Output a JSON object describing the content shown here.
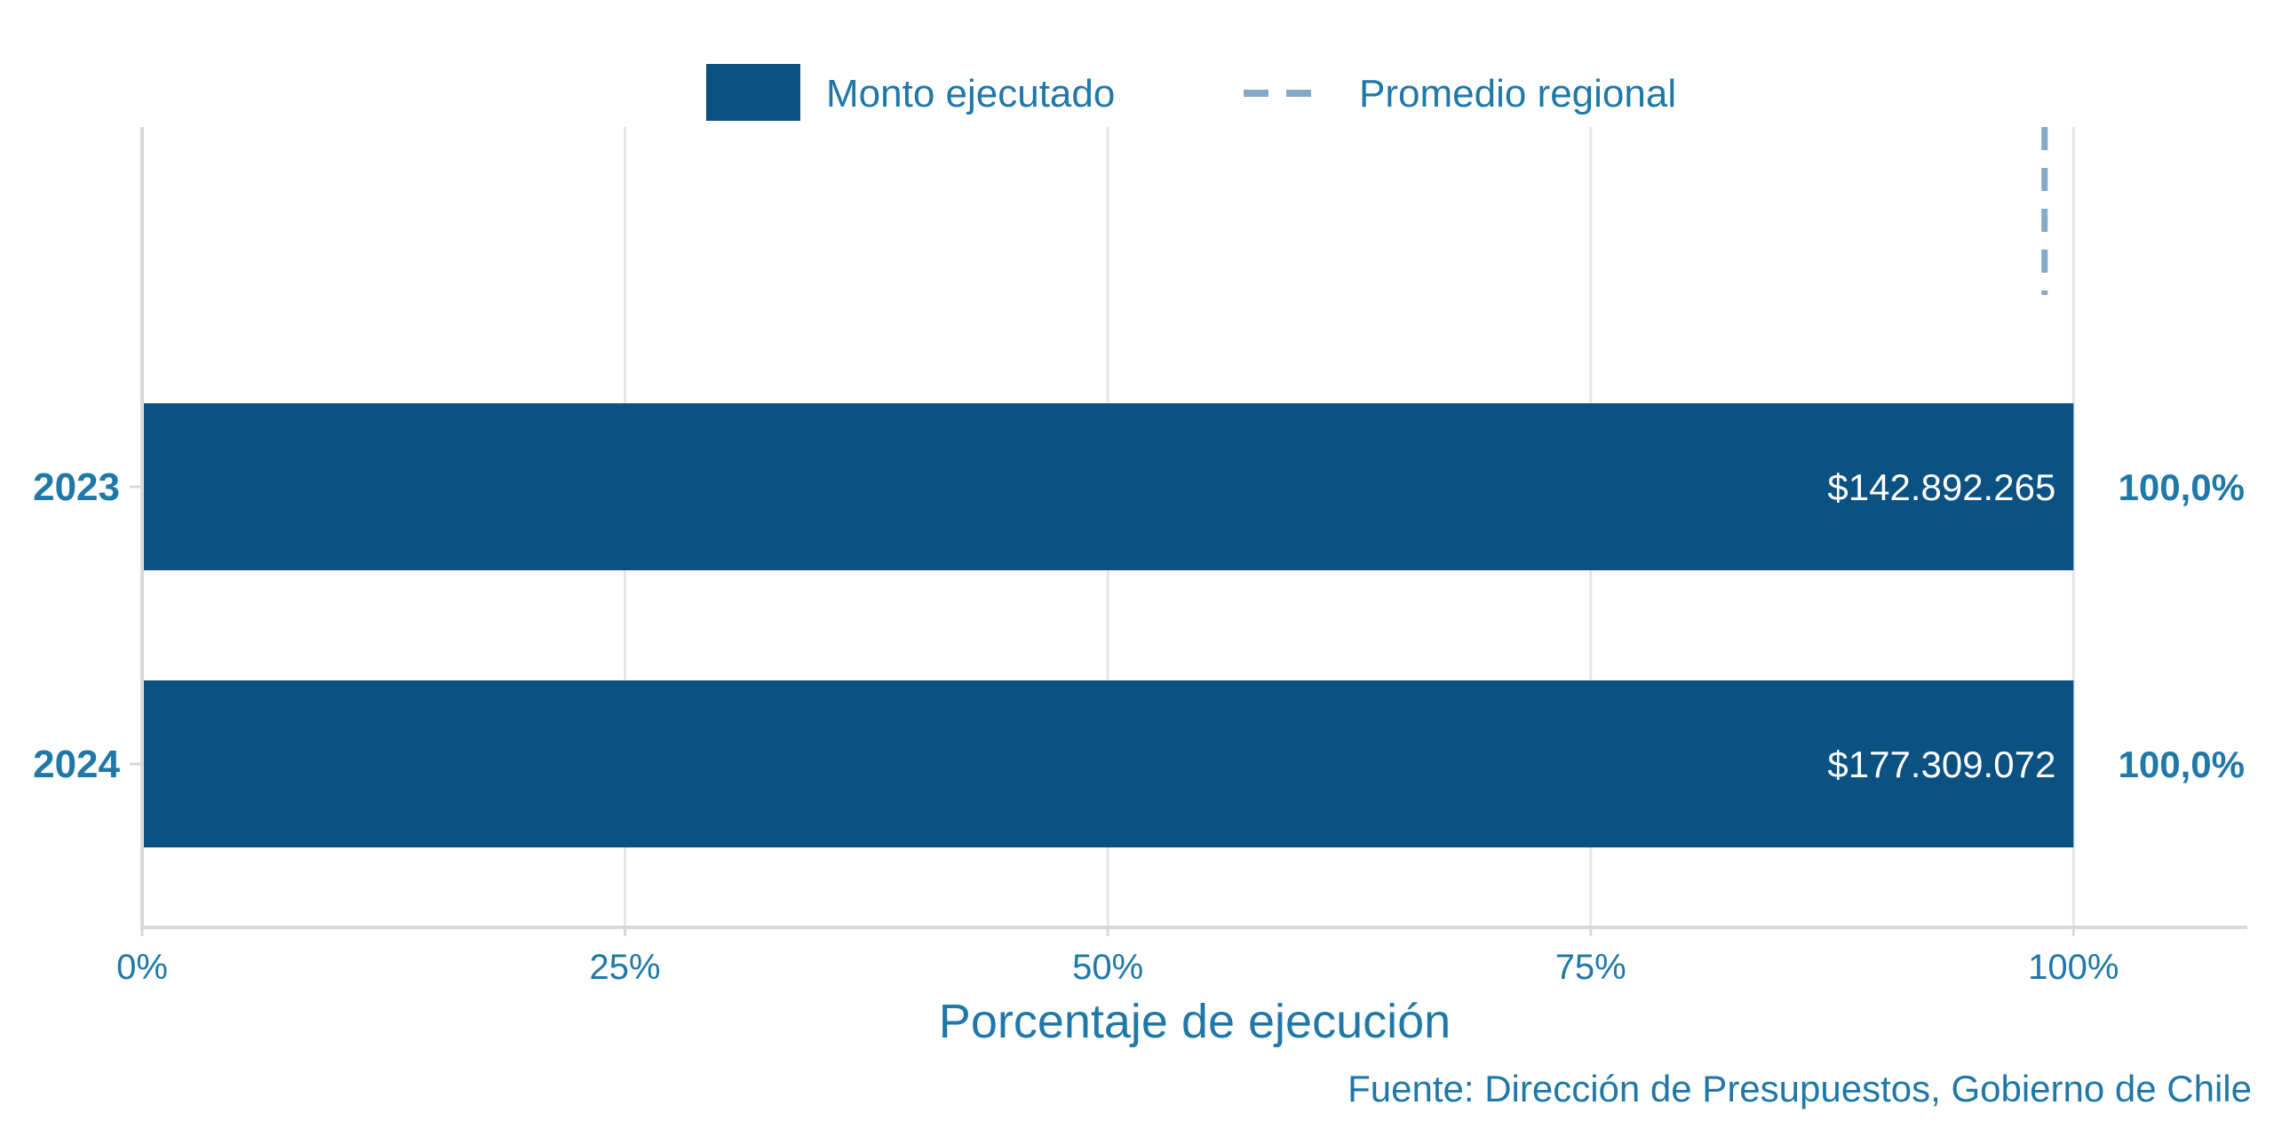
{
  "chart_data": {
    "type": "bar",
    "orientation": "horizontal",
    "categories": [
      "2023",
      "2024"
    ],
    "series": [
      {
        "name": "Monto ejecutado",
        "values": [
          100.0,
          100.0
        ],
        "inside_labels": [
          "$142.892.265",
          "$177.309.072"
        ],
        "outside_labels": [
          "100,0%",
          "100,0%"
        ]
      }
    ],
    "reference_line": {
      "name": "Promedio regional",
      "value": 98.5,
      "style": "dashed"
    },
    "xlabel": "Porcentaje de ejecución",
    "xticks": [
      0,
      25,
      50,
      75,
      100
    ],
    "xtick_labels": [
      "0%",
      "25%",
      "50%",
      "75%",
      "100%"
    ],
    "xlim": [
      0,
      109
    ],
    "grid": "vertical",
    "legend_position": "top-center",
    "caption": "Fuente: Dirección de Presupuestos, Gobierno de Chile",
    "colors": {
      "bar": "#0b5182",
      "reference_line": "#84a9c9",
      "text": "#1f78a8",
      "grid": "#e6e6e6",
      "axis": "#d9d9d9",
      "bar_label": "#ffffff"
    }
  }
}
